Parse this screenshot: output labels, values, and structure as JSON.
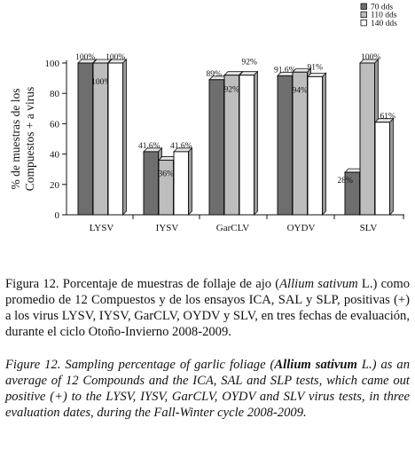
{
  "chart_data": {
    "type": "bar",
    "ylabel_line1": "% de muestras de los",
    "ylabel_line2": "Compuestos + a virus",
    "ylim": [
      0,
      100
    ],
    "yticks": [
      0,
      20,
      40,
      60,
      80,
      100
    ],
    "categories": [
      "LYSV",
      "IYSV",
      "GarCLV",
      "OYDV",
      "SLV"
    ],
    "series": [
      {
        "name": "70 dds",
        "color": "#6e6e6e",
        "values": [
          100,
          41.6,
          89,
          91.6,
          28
        ],
        "labels": [
          "100%",
          "41.6%",
          "89%",
          "91.6%",
          "28%"
        ]
      },
      {
        "name": "110 dds",
        "color": "#bdbdbd",
        "values": [
          100,
          36,
          92,
          94,
          100
        ],
        "labels": [
          "100%",
          "36%",
          "92%",
          "94%",
          "100%"
        ]
      },
      {
        "name": "140 dds",
        "color": "#ffffff",
        "values": [
          100,
          41.6,
          92,
          91,
          61
        ],
        "labels": [
          "100%",
          "41.6%",
          "92%",
          "91%",
          "61%"
        ]
      }
    ],
    "legend_position": "top-right",
    "grid": false
  },
  "caption_es": {
    "text1": "Figura 12. Porcentaje de muestras de follaje de ajo (",
    "italic1": "Allium sativum",
    "text2": " L.) como promedio de 12 Compuestos y de los ensayos ICA, SAL y SLP, positivas (+) a los virus LYSV, IYSV, GarCLV, OYDV y SLV, en tres fechas de evaluación, durante el ciclo Otoño-Invierno 2008-2009."
  },
  "caption_en": {
    "text1": "Figure 12. Sampling percentage of garlic foliage (",
    "bold1": "Allium sativum",
    "text2": " L.) as an average of 12 Compounds and the ICA, SAL and  SLP tests, which came out positive (+)  to the LYSV, IYSV, GarCLV, OYDV and SLV virus tests, in three evaluation dates, during the Fall-Winter cycle 2008-2009."
  }
}
